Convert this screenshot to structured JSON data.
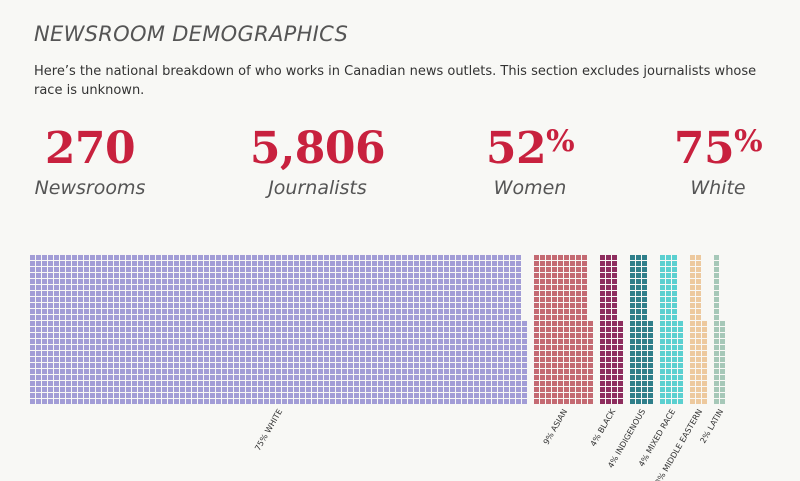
{
  "header": {
    "title": "NEWSROOM DEMOGRAPHICS",
    "intro": "Here’s the national breakdown of who works in Canadian news outlets. This section excludes journalists whose race is unknown."
  },
  "stats": [
    {
      "value": "270",
      "suffix": "",
      "label": "Newsrooms"
    },
    {
      "value": "5,806",
      "suffix": "",
      "label": "Journalists"
    },
    {
      "value": "52",
      "suffix": "%",
      "label": "Women"
    },
    {
      "value": "75",
      "suffix": "%",
      "label": "White"
    }
  ],
  "colors": {
    "accent": "#c8213e",
    "white": "#a29dd6",
    "asian": "#c46a72",
    "black": "#8e2d5e",
    "indigenous": "#2f7f8a",
    "mixed_race": "#5bd0d0",
    "middle_eastern": "#edc99e",
    "latin": "#a6c8b8"
  },
  "chart_data": {
    "type": "waffle",
    "title": "",
    "unit": "percent of journalists",
    "categories": [
      "WHITE",
      "ASIAN",
      "BLACK",
      "INDIGENOUS",
      "MIXED RACE",
      "MIDDLE EASTERN",
      "LATIN"
    ],
    "values": [
      75,
      9,
      4,
      4,
      4,
      3,
      2
    ],
    "labels": [
      "75% WHITE",
      "9% ASIAN",
      "4% BLACK",
      "4% INDIGENOUS",
      "4% MIXED RACE",
      "3% MIDDLE EASTERN",
      "2% LATIN"
    ],
    "colors": [
      "#a29dd6",
      "#c46a72",
      "#8e2d5e",
      "#2f7f8a",
      "#5bd0d0",
      "#edc99e",
      "#a6c8b8"
    ]
  }
}
